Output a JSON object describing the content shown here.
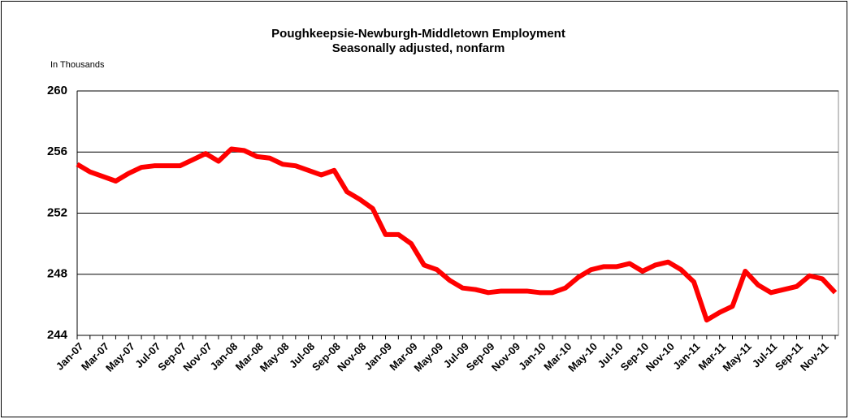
{
  "chart_data": {
    "type": "line",
    "title": "Poughkeepsie-Newburgh-Middletown Employment",
    "subtitle": "Seasonally adjusted, nonfarm",
    "y_axis_label": "In Thousands",
    "categories": [
      "Jan-07",
      null,
      "Mar-07",
      null,
      "May-07",
      null,
      "Jul-07",
      null,
      "Sep-07",
      null,
      "Nov-07",
      null,
      "Jan-08",
      null,
      "Mar-08",
      null,
      "May-08",
      null,
      "Jul-08",
      null,
      "Sep-08",
      null,
      "Nov-08",
      null,
      "Jan-09",
      null,
      "Mar-09",
      null,
      "May-09",
      null,
      "Jul-09",
      null,
      "Sep-09",
      null,
      "Nov-09",
      null,
      "Jan-10",
      null,
      "Mar-10",
      null,
      "May-10",
      null,
      "Jul-10",
      null,
      "Sep-10",
      null,
      "Nov-10",
      null,
      "Jan-11",
      null,
      "Mar-11",
      null,
      "May-11",
      null,
      "Jul-11",
      null,
      "Sep-11",
      null,
      "Nov-11",
      null
    ],
    "series": [
      {
        "name": "Employment",
        "color": "#ff0000",
        "values": [
          255.2,
          254.7,
          254.4,
          254.1,
          254.6,
          255.0,
          255.1,
          255.1,
          255.1,
          255.5,
          255.9,
          255.4,
          256.2,
          256.1,
          255.7,
          255.6,
          255.2,
          255.1,
          254.8,
          254.5,
          254.8,
          253.4,
          252.9,
          252.3,
          250.6,
          250.6,
          250.0,
          248.6,
          248.3,
          247.6,
          247.1,
          247.0,
          246.8,
          246.9,
          246.9,
          246.9,
          246.8,
          246.8,
          247.1,
          247.8,
          248.3,
          248.5,
          248.5,
          248.7,
          248.2,
          248.6,
          248.8,
          248.3,
          247.5,
          245.0,
          245.5,
          245.9,
          248.2,
          247.3,
          246.8,
          247.0,
          247.2,
          247.9,
          247.7,
          246.8
        ]
      }
    ],
    "ylim": [
      244,
      260
    ],
    "yticks": [
      244,
      248,
      252,
      256,
      260
    ],
    "grid": true
  }
}
